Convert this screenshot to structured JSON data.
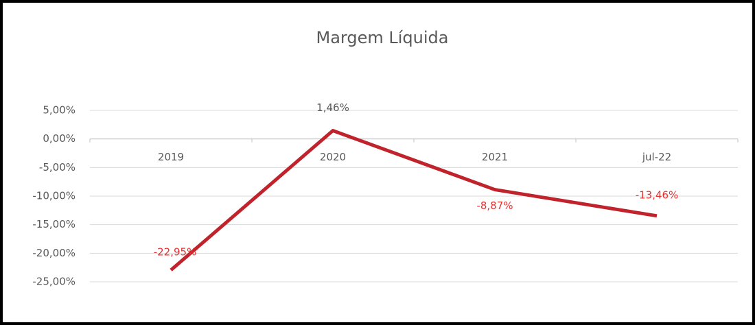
{
  "chart_data": {
    "type": "line",
    "title": "Margem Líquida",
    "categories": [
      "2019",
      "2020",
      "2021",
      "jul-22"
    ],
    "series": [
      {
        "name": "Margem Líquida",
        "color": "#c0232b",
        "values": [
          -22.95,
          1.46,
          -8.87,
          -13.46
        ],
        "value_labels": [
          "-22,95%",
          "1,46%",
          "-8,87%",
          "-13,46%"
        ],
        "value_label_colors": [
          "#e8312f",
          "#595959",
          "#e8312f",
          "#e8312f"
        ]
      }
    ],
    "ylim": [
      -25,
      5
    ],
    "yticks": [
      {
        "value": -25,
        "label": "-25,00%"
      },
      {
        "value": -20,
        "label": "-20,00%"
      },
      {
        "value": -15,
        "label": "-15,00%"
      },
      {
        "value": -10,
        "label": "-10,00%"
      },
      {
        "value": -5,
        "label": "-5,00%"
      },
      {
        "value": 0,
        "label": "0,00%"
      },
      {
        "value": 5,
        "label": "5,00%"
      }
    ],
    "grid": true
  }
}
